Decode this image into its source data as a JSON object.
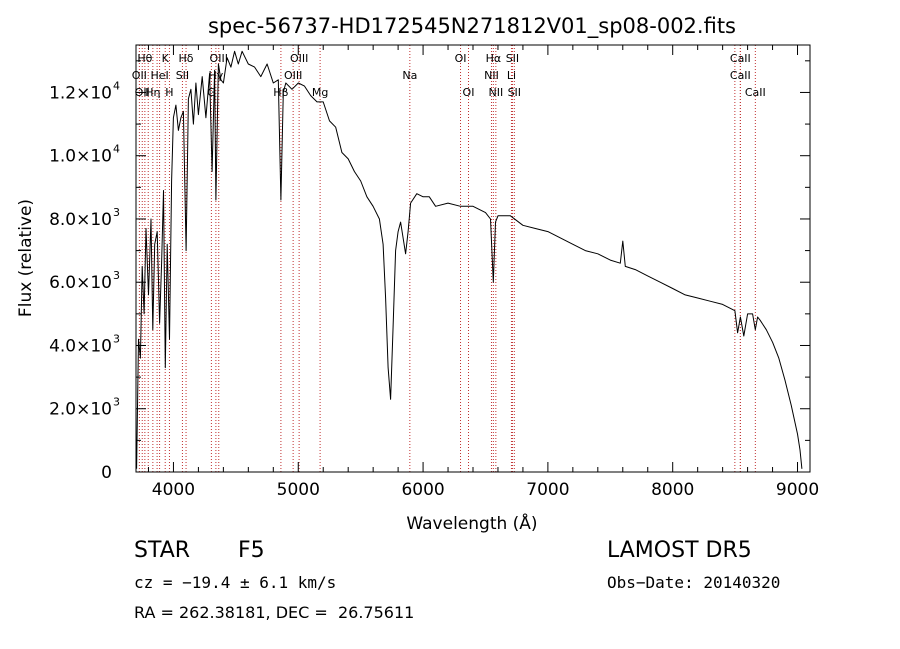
{
  "chart_data": {
    "type": "line",
    "title": "spec-56737-HD172545N271812V01_sp08-002.fits",
    "xlabel": "Wavelength (Å)",
    "ylabel": "Flux (relative)",
    "xlim": [
      3700,
      9100
    ],
    "ylim": [
      0,
      13500
    ],
    "grid": false,
    "x_ticks": [
      {
        "value": 4000,
        "label": "4000"
      },
      {
        "value": 5000,
        "label": "5000"
      },
      {
        "value": 6000,
        "label": "6000"
      },
      {
        "value": 7000,
        "label": "7000"
      },
      {
        "value": 8000,
        "label": "8000"
      },
      {
        "value": 9000,
        "label": "9000"
      }
    ],
    "y_ticks": [
      {
        "value": 0,
        "mant": "0",
        "exp": ""
      },
      {
        "value": 2000,
        "mant": "2.0×10",
        "exp": "3"
      },
      {
        "value": 4000,
        "mant": "4.0×10",
        "exp": "3"
      },
      {
        "value": 6000,
        "mant": "6.0×10",
        "exp": "3"
      },
      {
        "value": 8000,
        "mant": "8.0×10",
        "exp": "3"
      },
      {
        "value": 10000,
        "mant": "1.0×10",
        "exp": "4"
      },
      {
        "value": 12000,
        "mant": "1.2×10",
        "exp": "4"
      }
    ],
    "series": [
      {
        "x": [
          3705,
          3720,
          3735,
          3750,
          3765,
          3780,
          3800,
          3820,
          3835,
          3850,
          3870,
          3889,
          3905,
          3920,
          3935,
          3950,
          3968,
          3985,
          4000,
          4020,
          4040,
          4060,
          4080,
          4101,
          4120,
          4140,
          4160,
          4180,
          4200,
          4230,
          4260,
          4290,
          4310,
          4330,
          4340,
          4360,
          4380,
          4400,
          4430,
          4460,
          4490,
          4520,
          4550,
          4600,
          4650,
          4700,
          4750,
          4800,
          4840,
          4861,
          4880,
          4900,
          4950,
          5000,
          5050,
          5100,
          5150,
          5200,
          5250,
          5300,
          5350,
          5400,
          5450,
          5500,
          5550,
          5600,
          5650,
          5680,
          5700,
          5720,
          5740,
          5760,
          5780,
          5800,
          5820,
          5840,
          5860,
          5880,
          5900,
          5950,
          6000,
          6050,
          6100,
          6200,
          6300,
          6400,
          6500,
          6540,
          6563,
          6580,
          6600,
          6700,
          6800,
          6900,
          7000,
          7100,
          7200,
          7300,
          7400,
          7500,
          7580,
          7600,
          7620,
          7700,
          7800,
          7900,
          8000,
          8100,
          8200,
          8300,
          8400,
          8498,
          8520,
          8542,
          8570,
          8600,
          8640,
          8662,
          8680,
          8700,
          8750,
          8800,
          8850,
          8900,
          8950,
          9000,
          9020,
          9035
        ],
        "y": [
          100,
          4200,
          3600,
          6500,
          5000,
          7700,
          5600,
          8000,
          4500,
          7200,
          7600,
          4700,
          6600,
          8900,
          3300,
          7200,
          4200,
          9200,
          11200,
          11600,
          10800,
          11200,
          11400,
          7000,
          11800,
          12100,
          11000,
          12300,
          11300,
          12500,
          11200,
          12600,
          9500,
          12700,
          8600,
          12900,
          12400,
          12300,
          13100,
          12800,
          13300,
          12900,
          13300,
          12900,
          12800,
          12500,
          12900,
          12300,
          12400,
          8600,
          12000,
          12300,
          12100,
          12300,
          12200,
          11900,
          11700,
          11700,
          11100,
          10900,
          10100,
          9900,
          9500,
          9200,
          8700,
          8400,
          8000,
          7200,
          5500,
          3300,
          2300,
          4600,
          7000,
          7600,
          7900,
          7400,
          6900,
          7600,
          8500,
          8800,
          8700,
          8700,
          8400,
          8500,
          8400,
          8400,
          8200,
          8000,
          6000,
          7900,
          8100,
          8100,
          7800,
          7700,
          7600,
          7400,
          7200,
          7000,
          6900,
          6700,
          6600,
          7300,
          6500,
          6400,
          6200,
          6000,
          5800,
          5600,
          5500,
          5400,
          5300,
          5100,
          4400,
          4900,
          4300,
          5000,
          5000,
          4500,
          4900,
          4800,
          4500,
          4100,
          3600,
          2900,
          2100,
          1200,
          700,
          100
        ]
      }
    ],
    "line_markers": [
      {
        "x": 3727,
        "label": "OII",
        "row": 1
      },
      {
        "x": 3750,
        "label": "OII",
        "row": 2
      },
      {
        "x": 3771,
        "label": "Hθ",
        "row": 0
      },
      {
        "x": 3798,
        "label": "",
        "row": 0
      },
      {
        "x": 3835,
        "label": "Hη",
        "row": 2
      },
      {
        "x": 3869,
        "label": "",
        "row": 0
      },
      {
        "x": 3889,
        "label": "HeI",
        "row": 1
      },
      {
        "x": 3934,
        "label": "K",
        "row": 0
      },
      {
        "x": 3968,
        "label": "H",
        "row": 2
      },
      {
        "x": 4072,
        "label": "SII",
        "row": 1
      },
      {
        "x": 4101,
        "label": "Hδ",
        "row": 0
      },
      {
        "x": 4304,
        "label": "G",
        "row": 2
      },
      {
        "x": 4340,
        "label": "Hγ",
        "row": 1
      },
      {
        "x": 4363,
        "label": "OIII",
        "row": 0
      },
      {
        "x": 4861,
        "label": "Hβ",
        "row": 2
      },
      {
        "x": 4959,
        "label": "OIII",
        "row": 1
      },
      {
        "x": 5007,
        "label": "OIII",
        "row": 0
      },
      {
        "x": 5175,
        "label": "Mg",
        "row": 2
      },
      {
        "x": 5894,
        "label": "Na",
        "row": 1
      },
      {
        "x": 6300,
        "label": "OI",
        "row": 0
      },
      {
        "x": 6364,
        "label": "OI",
        "row": 2
      },
      {
        "x": 6548,
        "label": "NII",
        "row": 1
      },
      {
        "x": 6563,
        "label": "Hα",
        "row": 0
      },
      {
        "x": 6583,
        "label": "NII",
        "row": 2
      },
      {
        "x": 6708,
        "label": "Li",
        "row": 1
      },
      {
        "x": 6716,
        "label": "SII",
        "row": 0
      },
      {
        "x": 6731,
        "label": "SII",
        "row": 2
      },
      {
        "x": 8498,
        "label": "",
        "row": 0
      },
      {
        "x": 8542,
        "label": "CaII",
        "row": 0
      },
      {
        "x": 8542,
        "label": "CaII",
        "row": 1
      },
      {
        "x": 8662,
        "label": "CaII",
        "row": 2
      }
    ],
    "marker_color": "#c03030",
    "line_color": "#000000"
  },
  "info": {
    "object_class": "STAR",
    "subclass": "F5",
    "survey": "LAMOST DR5",
    "velocity": "cz = −19.4 ± 6.1 km/s",
    "obs_date": "Obs−Date: 20140320",
    "coords": "RA = 262.38181, DEC =  26.75611"
  }
}
